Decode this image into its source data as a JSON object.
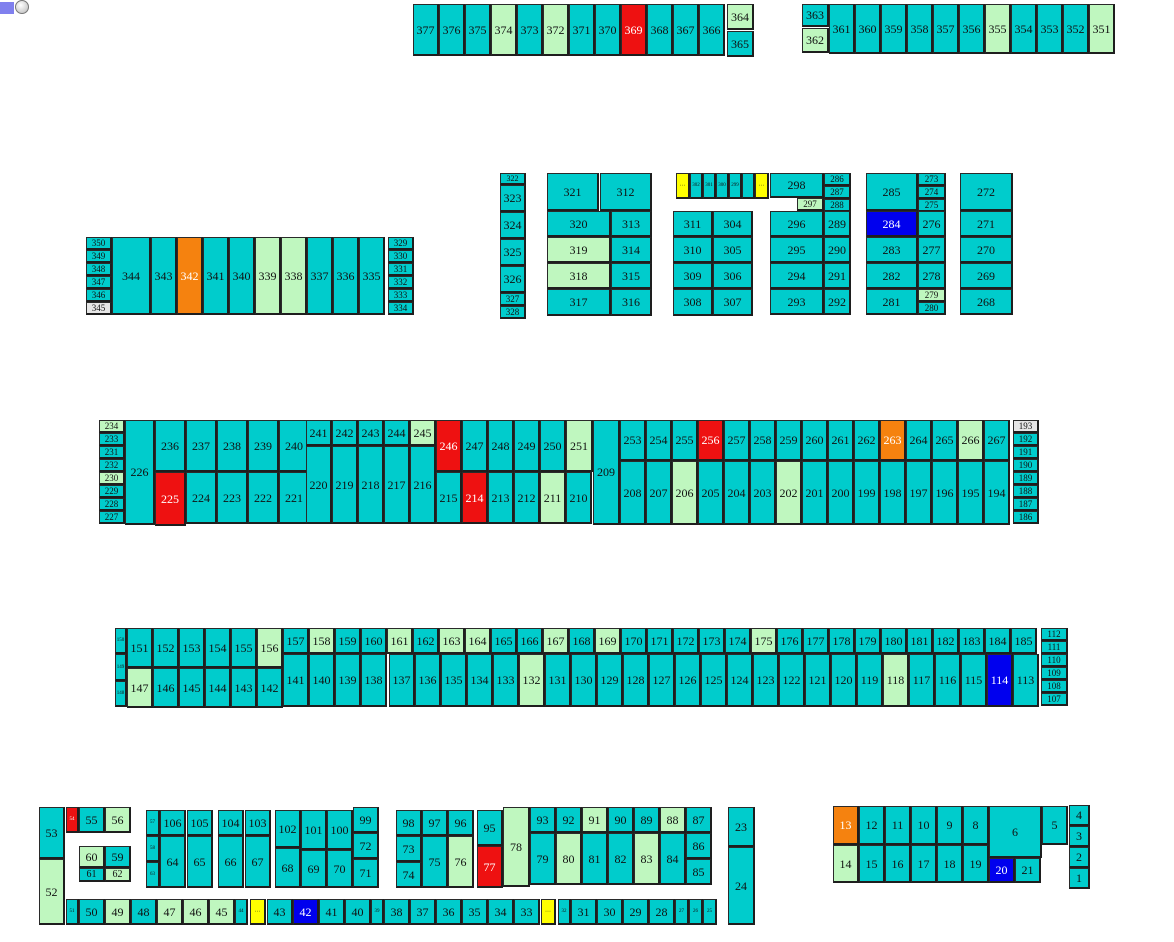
{
  "legend": {
    "swatch_color": "#8080ee",
    "icon": "circle-icon"
  },
  "status_colors": {
    "c": "#00cccc",
    "g": "#bff7bf",
    "r": "#ee1111",
    "o": "#f5820f",
    "b": "#0000ee",
    "y": "#ffff00",
    "w": "#e6e6e6"
  },
  "stalls": {
    "377": "c",
    "376": "c",
    "375": "c",
    "374": "g",
    "373": "c",
    "372": "g",
    "371": "c",
    "370": "c",
    "369": "r",
    "368": "c",
    "367": "c",
    "366": "c",
    "364": "g",
    "365": "c",
    "363": "c",
    "362": "g",
    "361": "c",
    "360": "c",
    "359": "c",
    "358": "c",
    "357": "c",
    "356": "c",
    "355": "g",
    "354": "c",
    "353": "c",
    "352": "c",
    "351": "g",
    "350": "c",
    "349": "c",
    "348": "c",
    "347": "c",
    "346": "c",
    "345": "w",
    "344": "c",
    "343": "c",
    "342": "o",
    "341": "c",
    "340": "c",
    "339": "g",
    "338": "g",
    "337": "c",
    "336": "c",
    "335": "c",
    "329": "c",
    "330": "c",
    "331": "c",
    "332": "c",
    "333": "c",
    "334": "c",
    "322": "c",
    "323": "c",
    "324": "c",
    "325": "c",
    "326": "c",
    "327": "c",
    "328": "c",
    "321": "c",
    "312": "c",
    "320": "c",
    "313": "c",
    "319": "g",
    "314": "c",
    "318": "g",
    "315": "c",
    "317": "c",
    "316": "c",
    "303": "y",
    "302": "c",
    "301": "c",
    "300": "c",
    "299": "c",
    "298b": "c",
    "298a": "y",
    "298": "c",
    "297": "g",
    "296": "c",
    "295": "c",
    "294": "c",
    "293": "c",
    "311": "c",
    "304": "c",
    "310": "c",
    "305": "c",
    "309": "c",
    "306": "c",
    "308": "c",
    "307": "c",
    "286": "c",
    "287": "c",
    "288": "c",
    "289": "c",
    "290": "c",
    "291": "c",
    "292": "c",
    "285": "c",
    "284": "b",
    "283": "c",
    "282": "c",
    "281": "c",
    "273": "c",
    "274": "c",
    "275": "c",
    "276": "c",
    "277": "c",
    "278": "c",
    "279": "g",
    "280": "c",
    "272": "c",
    "271": "c",
    "270": "c",
    "269": "c",
    "268": "c",
    "234": "g",
    "233": "c",
    "231": "c",
    "232": "c",
    "230": "g",
    "229": "c",
    "228": "c",
    "227": "c",
    "226": "c",
    "236": "c",
    "237": "c",
    "238": "c",
    "239": "c",
    "240": "c",
    "241": "c",
    "242": "c",
    "243": "c",
    "244": "c",
    "245": "g",
    "246": "r",
    "247": "c",
    "248": "c",
    "249": "c",
    "250": "c",
    "251": "g",
    "225": "r",
    "224": "c",
    "223": "c",
    "222": "c",
    "221": "c",
    "220": "c",
    "219": "c",
    "218": "c",
    "217": "c",
    "216": "c",
    "215": "c",
    "214": "r",
    "213": "c",
    "212": "c",
    "211": "g",
    "210": "c",
    "209": "c",
    "253": "c",
    "254": "c",
    "255": "c",
    "256": "r",
    "257": "c",
    "258": "c",
    "259": "c",
    "260": "c",
    "261": "c",
    "262": "c",
    "263": "o",
    "264": "c",
    "265": "c",
    "266": "g",
    "267": "c",
    "208": "c",
    "207": "c",
    "206": "g",
    "205": "c",
    "204": "c",
    "203": "c",
    "202": "g",
    "201": "c",
    "200": "c",
    "199": "c",
    "198": "c",
    "197": "c",
    "196": "c",
    "195": "c",
    "194": "c",
    "193": "w",
    "192": "c",
    "191": "c",
    "190": "c",
    "189": "c",
    "188": "c",
    "187": "c",
    "186": "c",
    "150": "c",
    "151": "c",
    "152": "c",
    "153": "c",
    "154": "c",
    "155": "c",
    "156": "g",
    "149": "c",
    "148": "c",
    "147": "g",
    "146": "c",
    "145": "c",
    "144": "c",
    "143": "c",
    "142": "c",
    "157": "c",
    "158": "g",
    "159": "c",
    "160": "c",
    "161": "g",
    "162": "c",
    "163": "g",
    "164": "g",
    "165": "c",
    "166": "c",
    "167": "g",
    "168": "c",
    "169": "g",
    "170": "c",
    "171": "c",
    "172": "c",
    "173": "c",
    "174": "c",
    "175": "g",
    "176": "c",
    "177": "c",
    "178": "c",
    "179": "c",
    "180": "c",
    "181": "c",
    "182": "c",
    "183": "c",
    "184": "c",
    "185": "c",
    "141": "c",
    "140": "c",
    "139": "c",
    "138": "c",
    "137": "c",
    "136": "c",
    "135": "c",
    "134": "c",
    "133": "c",
    "132": "g",
    "131": "c",
    "130": "c",
    "129": "c",
    "128": "c",
    "127": "c",
    "126": "c",
    "125": "c",
    "124": "c",
    "123": "c",
    "122": "c",
    "121": "c",
    "120": "c",
    "119": "c",
    "118": "g",
    "117": "c",
    "116": "c",
    "115": "c",
    "114": "b",
    "113": "c",
    "112": "c",
    "111": "c",
    "110": "c",
    "109": "c",
    "108": "c",
    "107": "c",
    "53": "c",
    "52": "g",
    "54": "r",
    "55": "c",
    "56": "g",
    "60": "g",
    "59": "c",
    "61": "c",
    "62": "g",
    "51": "c",
    "50": "c",
    "49": "g",
    "48": "c",
    "47": "g",
    "46": "g",
    "45": "g",
    "44": "c",
    "43b": "y",
    "43": "c",
    "42": "b",
    "41": "c",
    "40": "c",
    "39": "c",
    "38": "c",
    "37": "c",
    "36": "c",
    "35": "c",
    "34": "c",
    "33": "c",
    "33a": "y",
    "32": "c",
    "31": "c",
    "30": "c",
    "29": "c",
    "28": "c",
    "27": "c",
    "26": "c",
    "25": "c",
    "57": "c",
    "58": "c",
    "63": "c",
    "106": "c",
    "105": "c",
    "104": "c",
    "103": "c",
    "64": "c",
    "65": "c",
    "66": "c",
    "67": "c",
    "102": "c",
    "101": "c",
    "100": "c",
    "99": "c",
    "72": "c",
    "68": "c",
    "69": "c",
    "70": "c",
    "71": "c",
    "98": "c",
    "97": "c",
    "96": "c",
    "95": "c",
    "73": "c",
    "74": "c",
    "75": "c",
    "76": "g",
    "77": "r",
    "78": "g",
    "93": "c",
    "92": "c",
    "91": "g",
    "90": "c",
    "89": "c",
    "88": "g",
    "87": "c",
    "86": "c",
    "85": "c",
    "79": "c",
    "80": "g",
    "81": "c",
    "82": "c",
    "83": "g",
    "84": "c",
    "23": "c",
    "24": "c",
    "13": "o",
    "12": "c",
    "11": "c",
    "10": "c",
    "9": "c",
    "8": "c",
    "6": "c",
    "5": "c",
    "4": "c",
    "3": "c",
    "2": "c",
    "1": "c",
    "14": "g",
    "15": "c",
    "16": "c",
    "17": "c",
    "18": "c",
    "19": "c",
    "20": "b",
    "21": "c"
  }
}
